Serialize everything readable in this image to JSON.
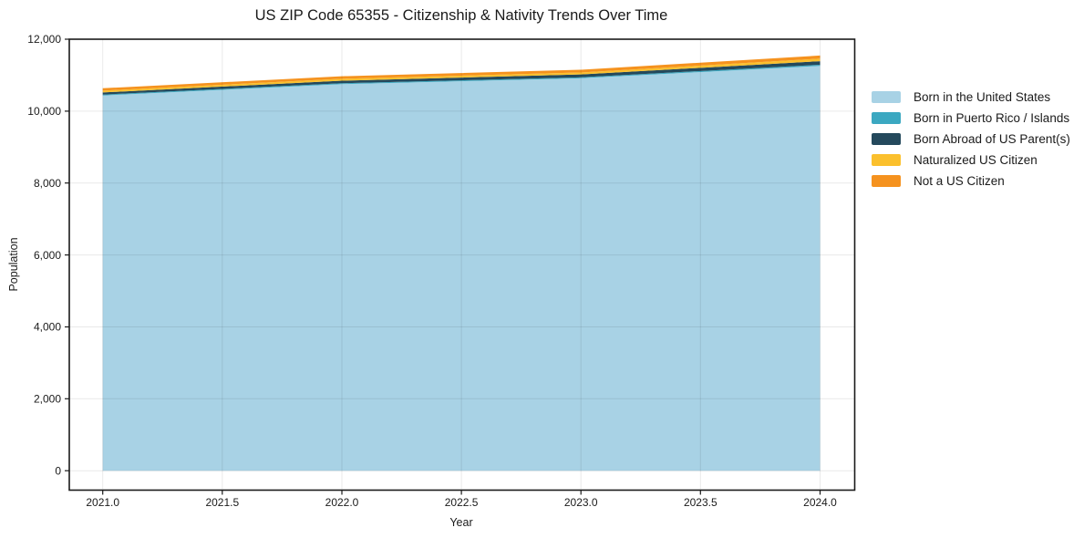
{
  "title": "US ZIP Code 65355 - Citizenship & Nativity Trends Over Time",
  "chart_data": {
    "type": "area",
    "stacked": true,
    "title": "US ZIP Code 65355 - Citizenship & Nativity Trends Over Time",
    "xlabel": "Year",
    "ylabel": "Population",
    "x": [
      2021,
      2022,
      2023,
      2024
    ],
    "series": [
      {
        "name": "Born in the United States",
        "color": "#a8d2e5",
        "values": [
          10435,
          10750,
          10915,
          11260
        ]
      },
      {
        "name": "Born in Puerto Rico / Islands",
        "color": "#3ba8c1",
        "values": [
          25,
          25,
          25,
          30
        ]
      },
      {
        "name": "Born Abroad of US Parent(s)",
        "color": "#24495c",
        "values": [
          60,
          70,
          80,
          100
        ]
      },
      {
        "name": "Naturalized US Citizen",
        "color": "#fbc02d",
        "values": [
          50,
          55,
          55,
          70
        ]
      },
      {
        "name": "Not a US Citizen",
        "color": "#f5921e",
        "values": [
          65,
          70,
          75,
          85
        ]
      }
    ],
    "totals": [
      10635,
      10970,
      11150,
      11545
    ],
    "xticks": [
      2021.0,
      2021.5,
      2022.0,
      2022.5,
      2023.0,
      2023.5,
      2024.0
    ],
    "yticks": [
      0,
      2000,
      4000,
      6000,
      8000,
      10000,
      12000
    ],
    "xlim": [
      2020.86,
      2024.145
    ],
    "ylim": [
      -540,
      12000
    ],
    "grid": true,
    "legend_position": "outside-right",
    "text_color": "#1a1a1a",
    "background_color": "#ffffff"
  }
}
